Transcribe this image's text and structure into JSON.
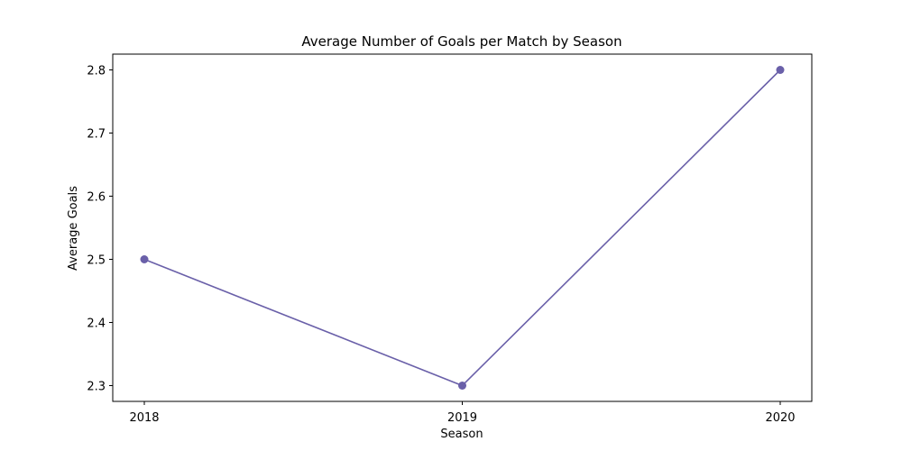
{
  "chart_data": {
    "type": "line",
    "title": "Average Number of Goals per Match by Season",
    "xlabel": "Season",
    "ylabel": "Average Goals",
    "categories": [
      "2018",
      "2019",
      "2020"
    ],
    "series": [
      {
        "values": [
          2.5,
          2.3,
          2.8
        ],
        "color": "#6a60a9",
        "marker": "circle"
      }
    ],
    "ylim": [
      2.275,
      2.825
    ],
    "yticks": [
      2.3,
      2.4,
      2.5,
      2.6,
      2.7,
      2.8
    ],
    "ytick_labels": [
      "2.3",
      "2.4",
      "2.5",
      "2.6",
      "2.7",
      "2.8"
    ],
    "grid": false,
    "legend": "none"
  }
}
